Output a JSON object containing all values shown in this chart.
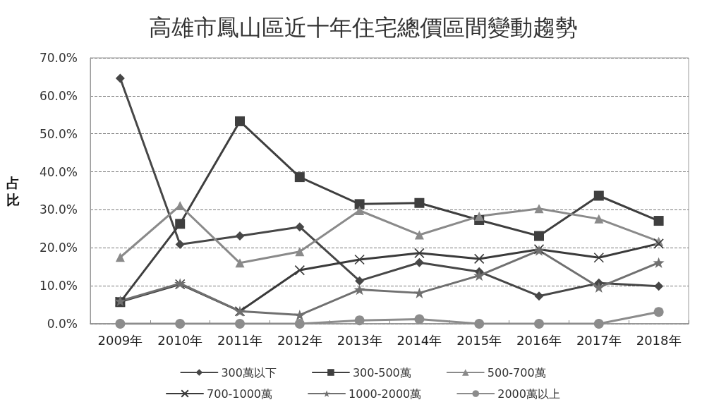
{
  "chart_data": {
    "type": "line",
    "title": "高雄市鳳山區近十年住宅總價區間變動趨勢",
    "ylabel": "占比",
    "categories": [
      "2009年",
      "2010年",
      "2011年",
      "2012年",
      "2013年",
      "2014年",
      "2015年",
      "2016年",
      "2017年",
      "2018年"
    ],
    "series": [
      {
        "name": "300萬以下",
        "color": "#474747",
        "marker": "diamond",
        "values": [
          64.6,
          20.9,
          23.1,
          25.5,
          11.3,
          16.1,
          13.7,
          7.3,
          10.7,
          9.9
        ]
      },
      {
        "name": "300-500萬",
        "color": "#3f3f3f",
        "marker": "square",
        "values": [
          5.7,
          26.3,
          53.3,
          38.6,
          31.5,
          31.8,
          27.3,
          23.1,
          33.7,
          27.1
        ]
      },
      {
        "name": "500-700萬",
        "color": "#8a8a8a",
        "marker": "triangle",
        "values": [
          17.5,
          31.1,
          16.0,
          19.0,
          29.8,
          23.4,
          28.3,
          30.3,
          27.6,
          21.7
        ]
      },
      {
        "name": "700-1000萬",
        "color": "#3a3a3a",
        "marker": "cross",
        "values": [
          5.8,
          10.4,
          3.3,
          14.1,
          16.9,
          18.6,
          17.1,
          19.6,
          17.4,
          21.1
        ]
      },
      {
        "name": "1000-2000萬",
        "color": "#707070",
        "marker": "star",
        "values": [
          6.0,
          10.6,
          3.3,
          2.3,
          9.0,
          8.1,
          12.7,
          19.3,
          9.6,
          16.1
        ]
      },
      {
        "name": "2000萬以上",
        "color": "#8c8c8c",
        "marker": "circle",
        "values": [
          0,
          0,
          0,
          0,
          0.9,
          1.2,
          0,
          0,
          0,
          3.1
        ]
      }
    ],
    "ylim": [
      0,
      70
    ],
    "yticks": [
      {
        "value": 0,
        "label": "0.0%"
      },
      {
        "value": 10,
        "label": "10.0%"
      },
      {
        "value": 20,
        "label": "20.0%"
      },
      {
        "value": 30,
        "label": "30.0%"
      },
      {
        "value": 40,
        "label": "40.0%"
      },
      {
        "value": 50,
        "label": "50.0%"
      },
      {
        "value": 60,
        "label": "60.0%"
      },
      {
        "value": 70,
        "label": "70.0%"
      }
    ],
    "grid": "y",
    "legend": "bottom",
    "line_style": "solid"
  }
}
